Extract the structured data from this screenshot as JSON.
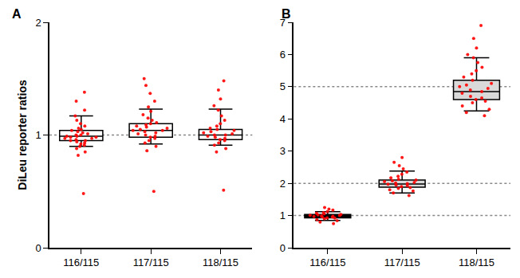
{
  "chart_data": [
    {
      "type": "box",
      "title": "A",
      "y_label": "DiLeu reporter ratios",
      "categories": [
        "116/115",
        "117/115",
        "118/115"
      ],
      "ylim": [
        0,
        2
      ],
      "yticks": [
        0,
        1,
        2
      ],
      "grid": false,
      "reference_lines": [
        1
      ],
      "color": "#ff0000",
      "boxes": [
        {
          "color": "#ffffff",
          "q1": 0.95,
          "median": 0.99,
          "q3": 1.04,
          "whisker_low": 0.9,
          "whisker_high": 1.17,
          "points": [
            0.48,
            0.82,
            0.85,
            0.88,
            0.9,
            0.91,
            0.92,
            0.93,
            0.94,
            0.95,
            0.95,
            0.96,
            0.97,
            0.97,
            0.98,
            0.98,
            0.99,
            0.99,
            1.0,
            1.0,
            1.01,
            1.02,
            1.03,
            1.04,
            1.05,
            1.06,
            1.08,
            1.1,
            1.13,
            1.17,
            1.22,
            1.3,
            1.38
          ]
        },
        {
          "color": "#ffffff",
          "q1": 0.98,
          "median": 1.04,
          "q3": 1.1,
          "whisker_low": 0.92,
          "whisker_high": 1.23,
          "points": [
            0.5,
            0.86,
            0.9,
            0.93,
            0.95,
            0.97,
            0.98,
            0.99,
            1.0,
            1.01,
            1.02,
            1.03,
            1.04,
            1.04,
            1.05,
            1.06,
            1.07,
            1.08,
            1.09,
            1.1,
            1.11,
            1.13,
            1.15,
            1.18,
            1.21,
            1.25,
            1.3,
            1.37,
            1.44,
            1.5
          ]
        },
        {
          "color": "#ffffff",
          "q1": 0.96,
          "median": 1.0,
          "q3": 1.05,
          "whisker_low": 0.91,
          "whisker_high": 1.23,
          "points": [
            0.51,
            0.85,
            0.88,
            0.91,
            0.93,
            0.95,
            0.96,
            0.97,
            0.98,
            0.99,
            1.0,
            1.0,
            1.01,
            1.02,
            1.03,
            1.04,
            1.05,
            1.06,
            1.08,
            1.1,
            1.13,
            1.17,
            1.22,
            1.26,
            1.32,
            1.4,
            1.48
          ]
        }
      ]
    },
    {
      "type": "box",
      "title": "B",
      "categories": [
        "116/115",
        "117/115",
        "118/115"
      ],
      "ylim": [
        0,
        7
      ],
      "yticks": [
        0,
        1,
        2,
        3,
        4,
        5,
        6,
        7
      ],
      "grid": false,
      "reference_lines": [
        1,
        2,
        5
      ],
      "color": "#ff0000",
      "boxes": [
        {
          "color": "#000000",
          "q1": 0.93,
          "median": 0.98,
          "q3": 1.03,
          "whisker_low": 0.85,
          "whisker_high": 1.12,
          "points": [
            0.75,
            0.8,
            0.84,
            0.87,
            0.9,
            0.92,
            0.93,
            0.95,
            0.96,
            0.97,
            0.98,
            0.99,
            1.0,
            1.01,
            1.02,
            1.03,
            1.05,
            1.07,
            1.09,
            1.12,
            1.17,
            1.2,
            1.25
          ]
        },
        {
          "color": "#d9d9d9",
          "q1": 1.88,
          "median": 1.98,
          "q3": 2.1,
          "whisker_low": 1.7,
          "whisker_high": 2.38,
          "points": [
            1.62,
            1.7,
            1.76,
            1.8,
            1.84,
            1.87,
            1.9,
            1.93,
            1.95,
            1.97,
            1.99,
            2.01,
            2.03,
            2.05,
            2.08,
            2.1,
            2.13,
            2.17,
            2.22,
            2.28,
            2.35,
            2.45,
            2.55,
            2.65,
            2.8
          ]
        },
        {
          "color": "#d9d9d9",
          "q1": 4.6,
          "median": 4.85,
          "q3": 5.2,
          "whisker_low": 4.25,
          "whisker_high": 5.9,
          "points": [
            4.1,
            4.2,
            4.3,
            4.4,
            4.5,
            4.55,
            4.6,
            4.65,
            4.7,
            4.8,
            4.85,
            4.9,
            4.95,
            5.0,
            5.05,
            5.1,
            5.2,
            5.3,
            5.4,
            5.5,
            5.6,
            5.75,
            5.9,
            6.0,
            6.2,
            6.5,
            6.9
          ]
        }
      ]
    }
  ]
}
